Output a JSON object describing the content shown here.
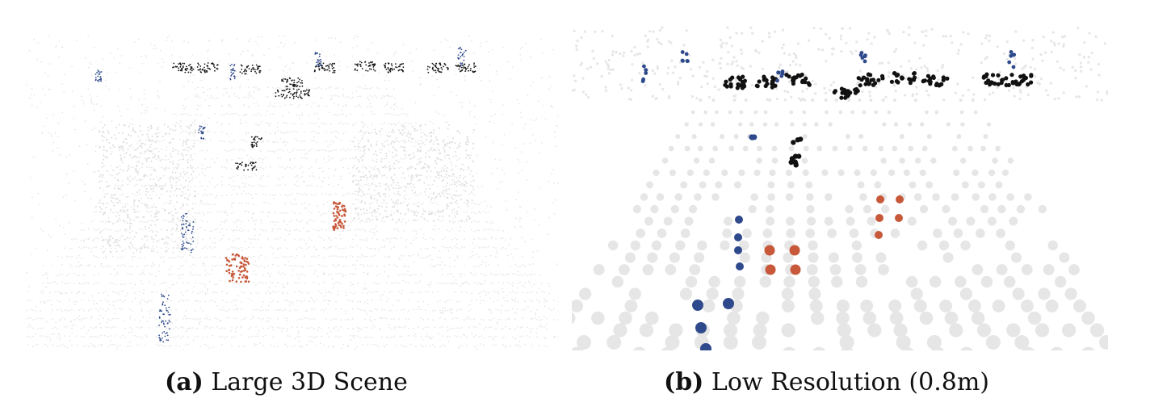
{
  "colors": {
    "background": "#ffffff",
    "ground": "#e6e6e6",
    "car": "#111111",
    "pedestrian": "#2f4a8c",
    "cyclist": "#c8583a"
  },
  "panels": [
    {
      "id": "a",
      "caption_tag": "(a)",
      "caption_text": "Large 3D Scene"
    },
    {
      "id": "b",
      "caption_tag": "(b)",
      "caption_text": "Low Resolution (0.8m)"
    }
  ]
}
